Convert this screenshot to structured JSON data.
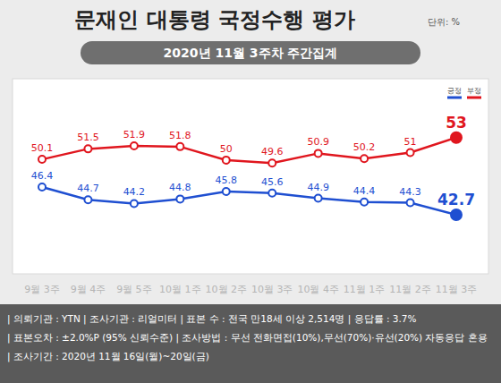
{
  "chart_data": {
    "type": "line",
    "title": "문재인 대통령 국정수행 평가",
    "subtitle": "2020년 11월 3주차 주간집계",
    "annotations": [
      "단위: %",
      "| 의뢰기관 : YTN | 조사기관 : 리얼미터 | 표본 수 : 전국 만18세 이상 2,514명 | 응답률 : 3.7%",
      "| 표본오차 : ±2.0%P (95% 신뢰수준) | 조사방법 : 무선 전화면접(10%),무선(70%)·유선(20%) 자동응답 혼용",
      "| 조사기간 : 2020년 11월 16일(월)~20일(금)"
    ],
    "categories": [
      "9월 3주",
      "9월 4주",
      "9월 5주",
      "10월 1주",
      "10월 2주",
      "10월 3주",
      "10월 4주",
      "11월 1주",
      "11월 2주",
      "11월 3주"
    ],
    "series": [
      {
        "name": "긍정",
        "color": "#1f4fd1",
        "values": [
          46.4,
          44.7,
          44.2,
          44.8,
          45.8,
          45.6,
          44.9,
          44.4,
          44.3,
          42.7
        ]
      },
      {
        "name": "부정",
        "color": "#e0161e",
        "values": [
          50.1,
          51.5,
          51.9,
          51.8,
          50.0,
          49.6,
          50.9,
          50.2,
          51.0,
          53.0
        ]
      }
    ],
    "ylim": [
      36,
      58
    ],
    "yticks": [],
    "tick_labels": "x",
    "grid": false,
    "legend": "top-right",
    "data_labels": true,
    "marker": "circle",
    "line_style": "solid"
  }
}
